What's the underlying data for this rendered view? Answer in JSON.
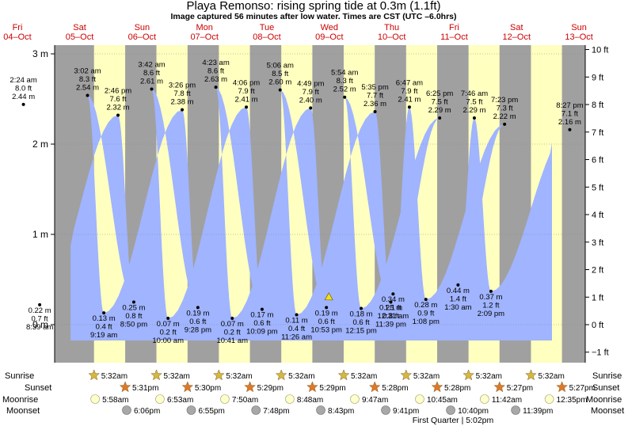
{
  "header": {
    "title": "Playa Remonso: rising  spring tide at 0.3m (1.1ft)",
    "subtitle": "Image captured 56 minutes after low water. Times are CST (UTC –6.0hrs)"
  },
  "days": [
    {
      "name": "Fri",
      "date": "04–Oct"
    },
    {
      "name": "Sat",
      "date": "05–Oct"
    },
    {
      "name": "Sun",
      "date": "06–Oct"
    },
    {
      "name": "Mon",
      "date": "07–Oct"
    },
    {
      "name": "Tue",
      "date": "08–Oct"
    },
    {
      "name": "Wed",
      "date": "09–Oct"
    },
    {
      "name": "Thu",
      "date": "10–Oct"
    },
    {
      "name": "Fri",
      "date": "11–Oct"
    },
    {
      "name": "Sat",
      "date": "12–Oct"
    },
    {
      "name": "Sun",
      "date": "13–Oct"
    }
  ],
  "row_labels": {
    "sunrise": "Sunrise",
    "sunset": "Sunset",
    "moonrise": "Moonrise",
    "moonset": "Moonset"
  },
  "moon_phase": "First Quarter | 5:02pm",
  "colors": {
    "night": "#a0a0a0",
    "day": "#ffffc0",
    "water": "#a0b4ff",
    "day_text": "#cc0000",
    "sun": "#d4b840",
    "sunset": "#e07828",
    "moonrise": "#ffffcc",
    "moonset": "#a8a8a8"
  },
  "chart_data": {
    "type": "area",
    "title": "Playa Remonso: rising  spring tide at 0.3m (1.1ft)",
    "y_left": {
      "unit": "m",
      "ticks": [
        "0 m",
        "1 m",
        "2 m",
        "3 m"
      ],
      "range": [
        -0.4,
        3.1
      ]
    },
    "y_right": {
      "unit": "ft",
      "ticks": [
        "−1 ft",
        "0 ft",
        "1 ft",
        "2 ft",
        "3 ft",
        "4 ft",
        "5 ft",
        "6 ft",
        "7 ft",
        "8 ft",
        "9 ft",
        "10 ft"
      ]
    },
    "x_range_hours": [
      0,
      240
    ],
    "current_level_m": 0.3,
    "current_marker_day": 4,
    "current_marker_time": "11:49 pm",
    "tides": [
      {
        "type": "high",
        "day": 0,
        "time": "2:24 am",
        "ft": "8.0 ft",
        "m": 2.44,
        "m_label": "2.44 m"
      },
      {
        "type": "low",
        "day": 0,
        "time": "8:39 am",
        "ft": "0.7 ft",
        "m": 0.22,
        "m_label": "0.22 m"
      },
      {
        "type": "high",
        "day": 1,
        "time": "2:46 pm",
        "ft": "7.6 ft",
        "m": 2.32,
        "m_label": "2.32 m"
      },
      {
        "type": "low",
        "day": 1,
        "time": "8:50 pm",
        "ft": "0.8 ft",
        "m": 0.25,
        "m_label": "0.25 m"
      },
      {
        "type": "high",
        "day": 1,
        "time": "3:02 am",
        "ft": "8.3 ft",
        "m": 2.54,
        "m_label": "2.54 m"
      },
      {
        "type": "low",
        "day": 1,
        "time": "9:19 am",
        "ft": "0.4 ft",
        "m": 0.13,
        "m_label": "0.13 m"
      },
      {
        "type": "high",
        "day": 2,
        "time": "3:26 pm",
        "ft": "7.8 ft",
        "m": 2.38,
        "m_label": "2.38 m"
      },
      {
        "type": "low",
        "day": 2,
        "time": "9:28 pm",
        "ft": "0.6 ft",
        "m": 0.19,
        "m_label": "0.19 m"
      },
      {
        "type": "high",
        "day": 2,
        "time": "3:42 am",
        "ft": "8.6 ft",
        "m": 2.61,
        "m_label": "2.61 m"
      },
      {
        "type": "low",
        "day": 2,
        "time": "10:00 am",
        "ft": "0.2 ft",
        "m": 0.07,
        "m_label": "0.07 m"
      },
      {
        "type": "high",
        "day": 3,
        "time": "4:06 pm",
        "ft": "7.9 ft",
        "m": 2.41,
        "m_label": "2.41 m"
      },
      {
        "type": "low",
        "day": 3,
        "time": "10:09 pm",
        "ft": "0.6 ft",
        "m": 0.17,
        "m_label": "0.17 m"
      },
      {
        "type": "high",
        "day": 3,
        "time": "4:23 am",
        "ft": "8.6 ft",
        "m": 2.63,
        "m_label": "2.63 m"
      },
      {
        "type": "low",
        "day": 3,
        "time": "10:41 am",
        "ft": "0.2 ft",
        "m": 0.07,
        "m_label": "0.07 m"
      },
      {
        "type": "high",
        "day": 4,
        "time": "4:49 pm",
        "ft": "7.9 ft",
        "m": 2.4,
        "m_label": "2.40 m"
      },
      {
        "type": "low",
        "day": 4,
        "time": "10:53 pm",
        "ft": "0.6 ft",
        "m": 0.19,
        "m_label": "0.19 m"
      },
      {
        "type": "high",
        "day": 4,
        "time": "5:06 am",
        "ft": "8.5 ft",
        "m": 2.6,
        "m_label": "2.60 m"
      },
      {
        "type": "low",
        "day": 4,
        "time": "11:26 am",
        "ft": "0.4 ft",
        "m": 0.11,
        "m_label": "0.11 m"
      },
      {
        "type": "high",
        "day": 5,
        "time": "5:35 pm",
        "ft": "7.7 ft",
        "m": 2.36,
        "m_label": "2.36 m"
      },
      {
        "type": "low",
        "day": 5,
        "time": "11:39 pm",
        "ft": "0.8 ft",
        "m": 0.25,
        "m_label": "0.25 m"
      },
      {
        "type": "high",
        "day": 5,
        "time": "5:54 am",
        "ft": "8.3 ft",
        "m": 2.52,
        "m_label": "2.52 m"
      },
      {
        "type": "low",
        "day": 5,
        "time": "12:15 pm",
        "ft": "0.6 ft",
        "m": 0.18,
        "m_label": "0.18 m"
      },
      {
        "type": "high",
        "day": 6,
        "time": "6:25 pm",
        "ft": "7.5 ft",
        "m": 2.29,
        "m_label": "2.29 m"
      },
      {
        "type": "low",
        "day": 6,
        "time": "12:31 am",
        "ft": "1.1 ft",
        "m": 0.34,
        "m_label": "0.34 m"
      },
      {
        "type": "high",
        "day": 6,
        "time": "6:47 am",
        "ft": "7.9 ft",
        "m": 2.41,
        "m_label": "2.41 m"
      },
      {
        "type": "low",
        "day": 6,
        "time": "1:08 pm",
        "ft": "0.9 ft",
        "m": 0.28,
        "m_label": "0.28 m"
      },
      {
        "type": "high",
        "day": 7,
        "time": "7:23 pm",
        "ft": "7.3 ft",
        "m": 2.22,
        "m_label": "2.22 m"
      },
      {
        "type": "low",
        "day": 7,
        "time": "1:30 am",
        "ft": "1.4 ft",
        "m": 0.44,
        "m_label": "0.44 m"
      },
      {
        "type": "high",
        "day": 7,
        "time": "7:46 am",
        "ft": "7.5 ft",
        "m": 2.29,
        "m_label": "2.29 m"
      },
      {
        "type": "low",
        "day": 7,
        "time": "2:09 pm",
        "ft": "1.2 ft",
        "m": 0.37,
        "m_label": "0.37 m"
      },
      {
        "type": "high",
        "day": 8,
        "time": "8:27 pm",
        "ft": "7.1 ft",
        "m": 2.16,
        "m_label": "2.16 m"
      }
    ],
    "sunrise": [
      "5:32am",
      "5:32am",
      "5:32am",
      "5:32am",
      "5:32am",
      "5:32am",
      "5:32am",
      "5:32am"
    ],
    "sunset": [
      "5:31pm",
      "5:30pm",
      "5:29pm",
      "5:29pm",
      "5:28pm",
      "5:28pm",
      "5:27pm",
      "5:27pm"
    ],
    "moonrise": [
      "5:58am",
      "6:53am",
      "7:50am",
      "8:48am",
      "9:47am",
      "10:45am",
      "11:42am",
      "12:35pm"
    ],
    "moonset": [
      "6:06pm",
      "6:55pm",
      "7:48pm",
      "8:43pm",
      "9:41pm",
      "10:40pm",
      "11:39pm"
    ]
  }
}
